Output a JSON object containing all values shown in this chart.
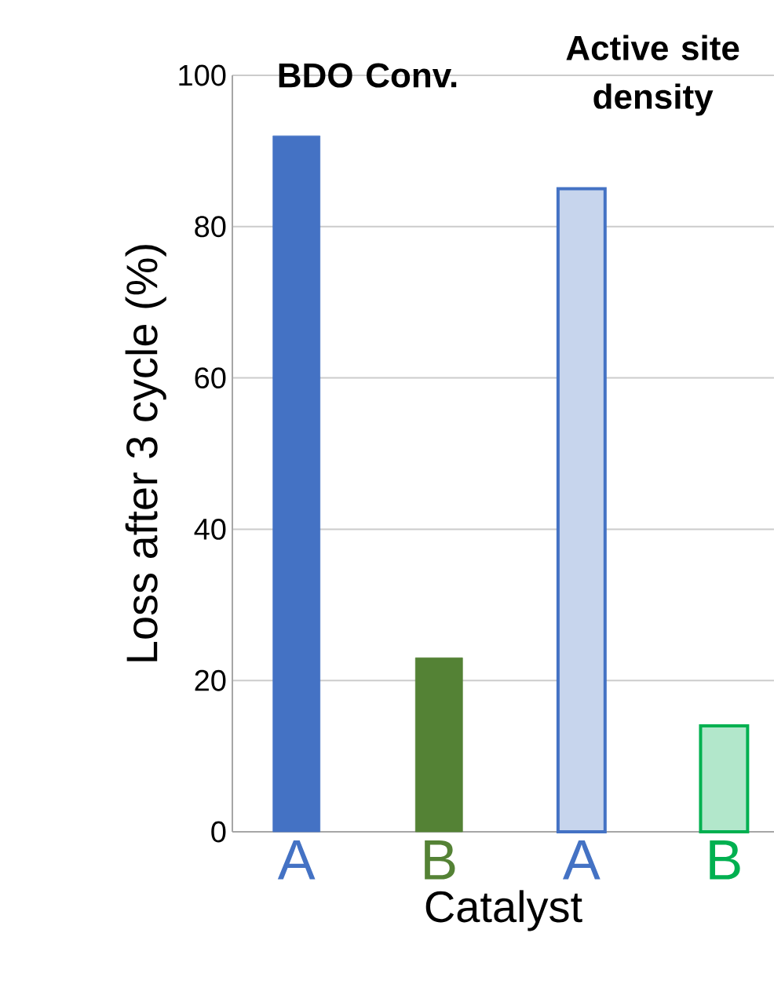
{
  "chart_data": {
    "type": "bar",
    "ylabel": "Loss after 3 cycle (%)",
    "xlabel": "Catalyst",
    "categories": [
      "A",
      "B",
      "A",
      "B"
    ],
    "values": [
      92,
      23,
      85,
      14
    ],
    "colors": [
      "#4472c4",
      "#548235",
      "#4472c4",
      "#00b050"
    ],
    "ylim": [
      0,
      100
    ],
    "yticks": [
      0,
      20,
      40,
      60,
      80,
      100
    ],
    "grid": "y",
    "annotations": [
      "**BDO Conv.**",
      "**Active site density**"
    ]
  }
}
